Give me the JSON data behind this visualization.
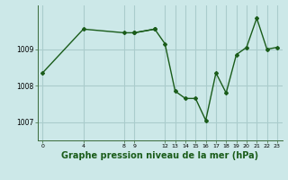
{
  "background_color": "#cce8e8",
  "grid_color": "#aacccc",
  "line_color": "#1a5c1a",
  "marker_color": "#1a5c1a",
  "xlabel": "Graphe pression niveau de la mer (hPa)",
  "xlabel_fontsize": 7,
  "ylim": [
    1006.5,
    1010.2
  ],
  "yticks": [
    1007,
    1008,
    1009
  ],
  "xlim": [
    -0.5,
    23.5
  ],
  "xticks": [
    0,
    4,
    8,
    9,
    12,
    13,
    14,
    15,
    16,
    17,
    18,
    19,
    20,
    21,
    22,
    23
  ],
  "series1_x": [
    0,
    4,
    8,
    9,
    11
  ],
  "series1_y": [
    1008.35,
    1009.55,
    1009.45,
    1009.45,
    1009.55
  ],
  "series2_x": [
    9,
    11,
    12,
    13,
    14,
    15,
    16,
    17,
    18,
    19,
    20,
    21,
    22,
    23
  ],
  "series2_y": [
    1009.45,
    1009.55,
    1009.15,
    1007.85,
    1007.65,
    1007.65,
    1007.05,
    1008.35,
    1007.8,
    1008.85,
    1009.05,
    1009.85,
    1009.0,
    1009.05
  ]
}
